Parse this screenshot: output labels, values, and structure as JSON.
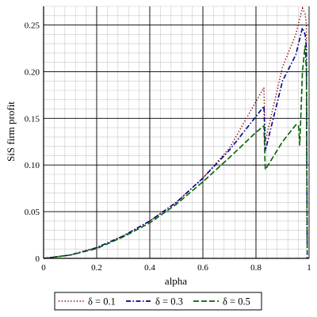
{
  "chart_data": {
    "type": "line",
    "xlabel": "alpha",
    "ylabel": "SiS firm profit",
    "xlim": [
      0,
      1.0
    ],
    "ylim": [
      0,
      0.27
    ],
    "x_ticks": [
      "0",
      "0.2",
      "0.4",
      "0.6",
      "0.8",
      "1"
    ],
    "y_ticks": [
      "0",
      "0.05",
      "0.10",
      "0.15",
      "0.20",
      "0.25"
    ],
    "grid": true,
    "legend_position": "bottom",
    "series": [
      {
        "name": "δ = 0.1",
        "color": "#8b0000",
        "style": "dotted",
        "points": [
          [
            0,
            0
          ],
          [
            0.1,
            0.0035
          ],
          [
            0.2,
            0.0115
          ],
          [
            0.3,
            0.024
          ],
          [
            0.4,
            0.04
          ],
          [
            0.5,
            0.06
          ],
          [
            0.6,
            0.086
          ],
          [
            0.7,
            0.118
          ],
          [
            0.8,
            0.168
          ],
          [
            0.83,
            0.183
          ],
          [
            0.835,
            0.125
          ],
          [
            0.9,
            0.205
          ],
          [
            0.95,
            0.24
          ],
          [
            0.975,
            0.268
          ],
          [
            0.985,
            0.262
          ],
          [
            0.99,
            0.25
          ],
          [
            0.992,
            0.02
          ]
        ]
      },
      {
        "name": "δ = 0.3",
        "color": "#00008b",
        "style": "dashdot",
        "points": [
          [
            0,
            0
          ],
          [
            0.1,
            0.0035
          ],
          [
            0.2,
            0.0115
          ],
          [
            0.3,
            0.024
          ],
          [
            0.4,
            0.04
          ],
          [
            0.5,
            0.06
          ],
          [
            0.6,
            0.086
          ],
          [
            0.7,
            0.116
          ],
          [
            0.8,
            0.152
          ],
          [
            0.83,
            0.163
          ],
          [
            0.835,
            0.115
          ],
          [
            0.9,
            0.19
          ],
          [
            0.95,
            0.218
          ],
          [
            0.975,
            0.247
          ],
          [
            0.985,
            0.24
          ],
          [
            0.99,
            0.225
          ],
          [
            0.993,
            0.0
          ]
        ]
      },
      {
        "name": "δ = 0.5",
        "color": "#006400",
        "style": "dashed",
        "points": [
          [
            0,
            0
          ],
          [
            0.1,
            0.0035
          ],
          [
            0.2,
            0.0105
          ],
          [
            0.3,
            0.023
          ],
          [
            0.4,
            0.038
          ],
          [
            0.5,
            0.058
          ],
          [
            0.6,
            0.082
          ],
          [
            0.7,
            0.108
          ],
          [
            0.8,
            0.135
          ],
          [
            0.83,
            0.142
          ],
          [
            0.835,
            0.095
          ],
          [
            0.9,
            0.125
          ],
          [
            0.95,
            0.143
          ],
          [
            0.96,
            0.143
          ],
          [
            0.965,
            0.121
          ],
          [
            0.975,
            0.2
          ],
          [
            0.985,
            0.228
          ],
          [
            0.99,
            0.2
          ],
          [
            0.993,
            0.005
          ]
        ]
      }
    ]
  }
}
